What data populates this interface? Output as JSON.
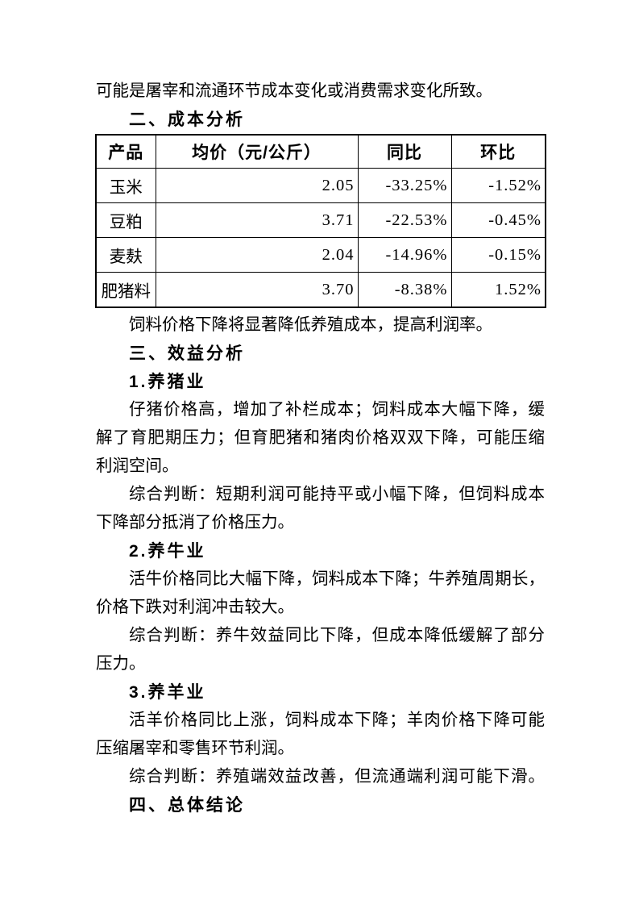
{
  "colors": {
    "text": "#000000",
    "background": "#ffffff",
    "table_border": "#000000"
  },
  "document": {
    "intro_tail": "可能是屠宰和流通环节成本变化或消费需求变化所致。",
    "cost": {
      "heading": "二、成本分析",
      "note": "饲料价格下降将显著降低养殖成本，提高利润率。"
    },
    "cost_table": {
      "headers": [
        "产品",
        "均价（元/公斤）",
        "同比",
        "环比"
      ],
      "rows": [
        {
          "product": "玉米",
          "price": "2.05",
          "yoy": "-33.25%",
          "mom": "-1.52%"
        },
        {
          "product": "豆粕",
          "price": "3.71",
          "yoy": "-22.53%",
          "mom": "-0.45%"
        },
        {
          "product": "麦麸",
          "price": "2.04",
          "yoy": "-14.96%",
          "mom": "-0.15%"
        },
        {
          "product": "肥猪料",
          "price": "3.70",
          "yoy": "-8.38%",
          "mom": "1.52%"
        }
      ]
    },
    "benefit": {
      "heading": "三、效益分析",
      "subsections": [
        {
          "heading": "1.养猪业",
          "p1_lines": [
            "仔猪价格高，增加了补栏成本；饲料成本大幅下降，缓",
            "解了育肥期压力；但育肥猪和猪肉价格双双下降，可能压缩",
            "利润空间。"
          ],
          "p2_lines": [
            "综合判断：短期利润可能持平或小幅下降，但饲料成本",
            "下降部分抵消了价格压力。"
          ]
        },
        {
          "heading": "2.养牛业",
          "p1_lines": [
            "活牛价格同比大幅下降，饲料成本下降；牛养殖周期长，",
            "价格下跌对利润冲击较大。"
          ],
          "p2_lines": [
            "综合判断：养牛效益同比下降，但成本降低缓解了部分",
            "压力。"
          ]
        },
        {
          "heading": "3.养羊业",
          "p1_lines": [
            "活羊价格同比上涨，饲料成本下降；羊肉价格下降可能",
            "压缩屠宰和零售环节利润。"
          ],
          "p2_lines": [
            "综合判断：养殖端效益改善，但流通端利润可能下滑。"
          ]
        }
      ]
    },
    "conclusion": {
      "heading": "四、总体结论"
    }
  }
}
